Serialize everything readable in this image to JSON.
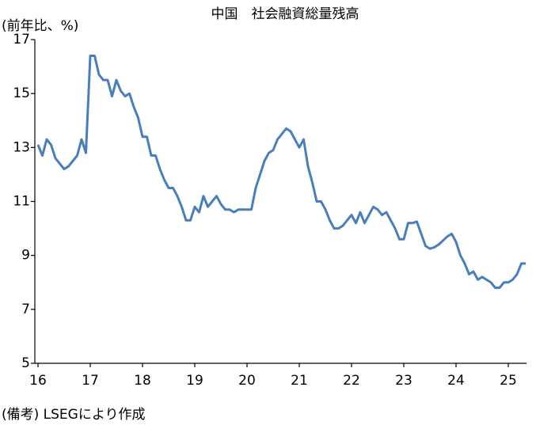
{
  "chart_data": {
    "type": "line",
    "title": "中国　社会融資総量残高",
    "y_label": "(前年比、%)",
    "note": "(備考) LSEGにより作成",
    "categories": [
      "16",
      null,
      null,
      null,
      null,
      null,
      null,
      null,
      null,
      null,
      null,
      null,
      "17",
      null,
      null,
      null,
      null,
      null,
      null,
      null,
      null,
      null,
      null,
      null,
      "18",
      null,
      null,
      null,
      null,
      null,
      null,
      null,
      null,
      null,
      null,
      null,
      "19",
      null,
      null,
      null,
      null,
      null,
      null,
      null,
      null,
      null,
      null,
      null,
      "20",
      null,
      null,
      null,
      null,
      null,
      null,
      null,
      null,
      null,
      null,
      null,
      "21",
      null,
      null,
      null,
      null,
      null,
      null,
      null,
      null,
      null,
      null,
      null,
      "22",
      null,
      null,
      null,
      null,
      null,
      null,
      null,
      null,
      null,
      null,
      null,
      "23",
      null,
      null,
      null,
      null,
      null,
      null,
      null,
      null,
      null,
      null,
      null,
      "24",
      null,
      null,
      null,
      null,
      null,
      null,
      null,
      null,
      null,
      null,
      null,
      "25",
      null,
      null,
      null,
      null
    ],
    "series": [
      {
        "color": "#4a7ebb",
        "values": [
          13.1,
          12.7,
          13.3,
          13.1,
          12.6,
          12.4,
          12.2,
          12.3,
          12.5,
          12.7,
          13.3,
          12.8,
          16.4,
          16.4,
          15.7,
          15.5,
          15.5,
          14.9,
          15.5,
          15.1,
          14.9,
          15.0,
          14.5,
          14.1,
          13.4,
          13.4,
          12.7,
          12.7,
          12.2,
          11.8,
          11.5,
          11.5,
          11.2,
          10.8,
          10.3,
          10.3,
          10.8,
          10.6,
          11.2,
          10.8,
          11.0,
          11.2,
          10.9,
          10.7,
          10.7,
          10.6,
          10.7,
          10.7,
          10.7,
          10.7,
          11.5,
          12.0,
          12.5,
          12.8,
          12.9,
          13.3,
          13.5,
          13.7,
          13.6,
          13.3,
          13.0,
          13.3,
          12.3,
          11.7,
          11.0,
          11.0,
          10.7,
          10.3,
          10.0,
          10.0,
          10.1,
          10.3,
          10.5,
          10.2,
          10.6,
          10.2,
          10.5,
          10.8,
          10.7,
          10.5,
          10.6,
          10.3,
          10.0,
          9.6,
          9.6,
          10.2,
          10.2,
          10.25,
          9.8,
          9.35,
          9.25,
          9.3,
          9.4,
          9.55,
          9.7,
          9.8,
          9.5,
          9.0,
          8.7,
          8.3,
          8.4,
          8.1,
          8.2,
          8.1,
          8.0,
          7.8,
          7.8,
          8.0,
          8.0,
          8.1,
          8.3,
          8.7,
          8.7
        ]
      }
    ],
    "ylim": [
      5,
      17
    ],
    "yticks": [
      5,
      7,
      9,
      11,
      13,
      15,
      17
    ]
  }
}
